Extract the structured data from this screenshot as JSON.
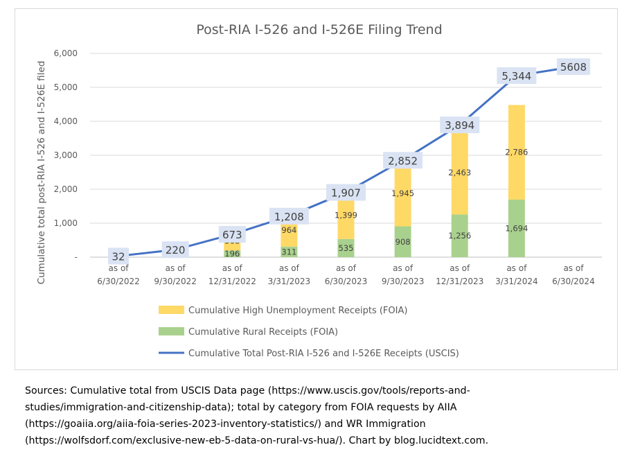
{
  "chart_data": {
    "type": "bar",
    "title": "Post-RIA I-526 and I-526E Filing Trend",
    "ylabel": "Cumulative total post-RIA I-526 and I-526E filed",
    "xlabel": "",
    "ylim": [
      0,
      6000
    ],
    "yticks": [
      {
        "value": 0,
        "label": "-"
      },
      {
        "value": 1000,
        "label": "1,000"
      },
      {
        "value": 2000,
        "label": "2,000"
      },
      {
        "value": 3000,
        "label": "3,000"
      },
      {
        "value": 4000,
        "label": "4,000"
      },
      {
        "value": 5000,
        "label": "5,000"
      },
      {
        "value": 6000,
        "label": "6,000"
      }
    ],
    "grid": true,
    "legend_position": "bottom",
    "categories": [
      [
        "as of",
        "6/30/2022"
      ],
      [
        "as of",
        "9/30/2022"
      ],
      [
        "as of",
        "12/31/2022"
      ],
      [
        "as of",
        "3/31/2023"
      ],
      [
        "as of",
        "6/30/2023"
      ],
      [
        "as of",
        "9/30/2023"
      ],
      [
        "as of",
        "12/31/2023"
      ],
      [
        "as of",
        "3/31/2024"
      ],
      [
        "as of",
        "6/30/2024"
      ]
    ],
    "series": [
      {
        "name": "Cumulative Rural Receipts (FOIA)",
        "kind": "stacked-bar",
        "color": "#a9d18e",
        "values": [
          null,
          null,
          196,
          311,
          535,
          908,
          1256,
          1694,
          null
        ],
        "labels": [
          null,
          null,
          "196",
          "311",
          "535",
          "908",
          "1,256",
          "1,694",
          null
        ]
      },
      {
        "name": "Cumulative High Unemployment Receipts (FOIA)",
        "kind": "stacked-bar",
        "color": "#ffd966",
        "values": [
          null,
          null,
          568,
          964,
          1399,
          1945,
          2463,
          2786,
          null
        ],
        "labels": [
          null,
          null,
          "568",
          "964",
          "1,399",
          "1,945",
          "2,463",
          "2,786",
          null
        ]
      },
      {
        "name": "Cumulative Total Post-RIA I-526 and I-526E Receipts (USCIS)",
        "kind": "line",
        "color": "#4472c4",
        "values": [
          32,
          220,
          673,
          1208,
          1907,
          2852,
          3894,
          5344,
          5608
        ],
        "labels": [
          "32",
          "220",
          "673",
          "1,208",
          "1,907",
          "2,852",
          "3,894",
          "5,344",
          "5608"
        ]
      }
    ],
    "legend_order": [
      "Cumulative High Unemployment Receipts (FOIA)",
      "Cumulative Rural Receipts (FOIA)",
      "Cumulative Total Post-RIA I-526 and I-526E Receipts (USCIS)"
    ]
  },
  "sources": [
    "Sources: Cumulative total from USCIS Data page (https://www.uscis.gov/tools/reports-and-",
    "studies/immigration-and-citizenship-data); total by category from FOIA requests by AIIA",
    "(https://goaiia.org/aiia-foia-series-2023-inventory-statistics/) and WR Immigration",
    "(https://wolfsdorf.com/exclusive-new-eb-5-data-on-rural-vs-hua/). Chart by blog.lucidtext.com."
  ]
}
